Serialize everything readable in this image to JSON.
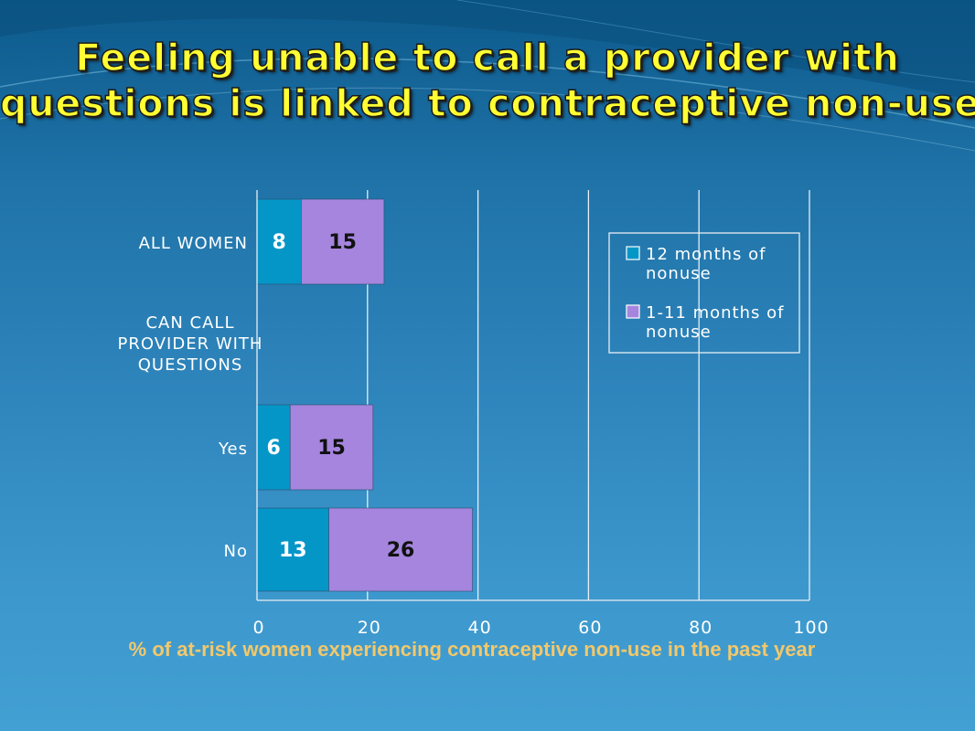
{
  "slide": {
    "title_line1": "Feeling unable to call a provider with",
    "title_line2": "questions is linked to contraceptive non-use."
  },
  "colors": {
    "series_12_months": "#0596c8",
    "series_1_11_months": "#a585de",
    "title": "#ffff33",
    "x_caption": "#f2c86b",
    "grid": "#e8eef3"
  },
  "chart_data": {
    "type": "bar",
    "orientation": "horizontal",
    "stacked": true,
    "xlabel": "% of at-risk women experiencing contraceptive non-use in the past year",
    "ylabel": "",
    "xlim": [
      0,
      100
    ],
    "xticks": [
      "0",
      "20",
      "40",
      "60",
      "80",
      "100"
    ],
    "grid": true,
    "legend_position": "top-right",
    "group_header": "CAN CALL PROVIDER WITH QUESTIONS",
    "categories": [
      "ALL WOMEN",
      "Yes",
      "No"
    ],
    "series": [
      {
        "name": "12 months of nonuse",
        "values": [
          8,
          6,
          13
        ]
      },
      {
        "name": "1-11 months of nonuse",
        "values": [
          15,
          15,
          26
        ]
      }
    ],
    "data_labels": [
      [
        "8",
        "15"
      ],
      [
        "6",
        "15"
      ],
      [
        "13",
        "26"
      ]
    ],
    "legend_labels": [
      {
        "line1": "12 months of",
        "line2": "nonuse"
      },
      {
        "line1": "1-11 months of",
        "line2": "nonuse"
      }
    ]
  }
}
